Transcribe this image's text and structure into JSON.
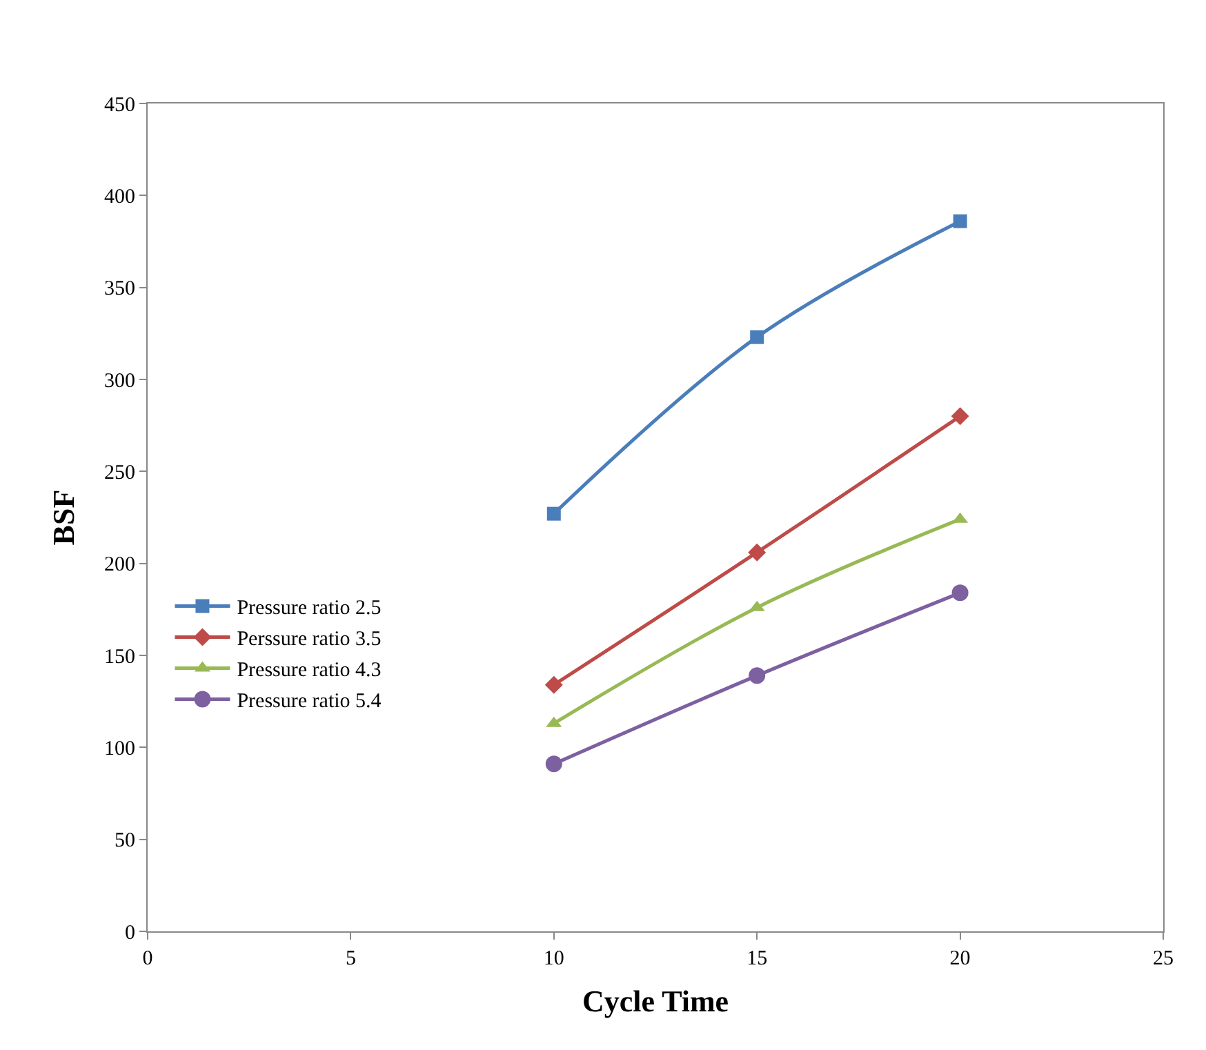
{
  "chart_data": {
    "type": "line",
    "xlabel": "Cycle Time",
    "ylabel": "BSF",
    "x": [
      10,
      15,
      20
    ],
    "series": [
      {
        "name": "Pressure ratio 2.5",
        "color": "#4a7ebb",
        "marker": "square",
        "values": [
          227,
          323,
          386
        ]
      },
      {
        "name": "Perssure ratio 3.5",
        "color": "#be4b48",
        "marker": "diamond",
        "values": [
          134,
          206,
          280
        ]
      },
      {
        "name": "Pressure ratio 4.3",
        "color": "#98b954",
        "marker": "triangle",
        "values": [
          113,
          176,
          224
        ]
      },
      {
        "name": "Pressure ratio 5.4",
        "color": "#7d60a0",
        "marker": "circle",
        "values": [
          91,
          139,
          184
        ]
      }
    ],
    "xlim": [
      0,
      25
    ],
    "xticks": [
      0,
      5,
      10,
      15,
      20,
      25
    ],
    "ylim": [
      0,
      450
    ],
    "yticks": [
      0,
      50,
      100,
      150,
      200,
      250,
      300,
      350,
      400,
      450
    ],
    "legend": "left"
  }
}
